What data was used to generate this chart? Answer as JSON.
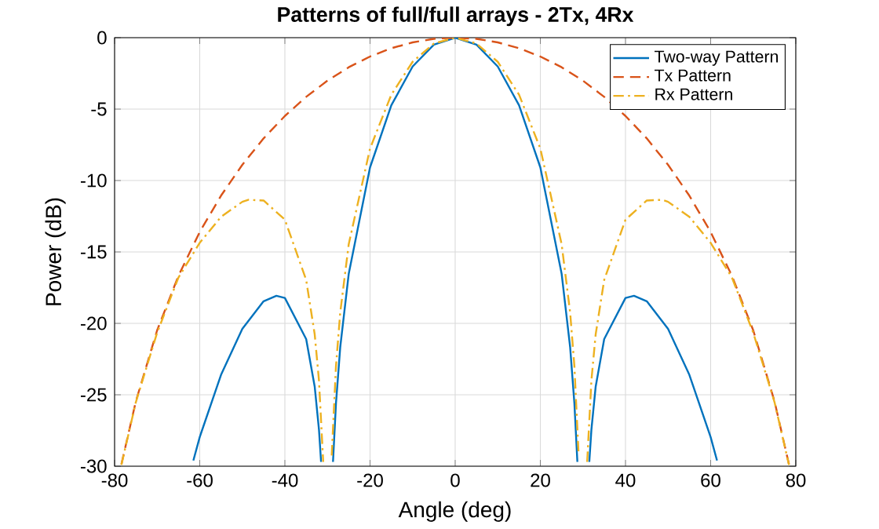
{
  "chart_data": {
    "type": "line",
    "title": "Patterns of full/full arrays - 2Tx, 4Rx",
    "xlabel": "Angle (deg)",
    "ylabel": "Power (dB)",
    "xlim": [
      -80,
      80
    ],
    "ylim": [
      -30,
      0
    ],
    "xticks": [
      -80,
      -60,
      -40,
      -20,
      0,
      20,
      40,
      60,
      80
    ],
    "yticks": [
      -30,
      -25,
      -20,
      -15,
      -10,
      -5,
      0
    ],
    "grid": true,
    "legend": "top right",
    "series": [
      {
        "name": "Two-way Pattern",
        "color": "#0072bd",
        "line_style": "solid",
        "x": [
          -61.5,
          -60,
          -55,
          -50,
          -45,
          -42,
          -40,
          -35,
          -33,
          -32,
          -31.5,
          -30,
          -28.7,
          -28,
          -27,
          -25,
          -20,
          -15,
          -10,
          -5,
          0,
          5,
          10,
          15,
          20,
          25,
          27,
          28,
          28.7,
          30,
          31.5,
          32,
          33,
          35,
          40,
          42,
          45,
          50,
          55,
          60,
          61.5
        ],
        "values": [
          -29.6,
          -27.96,
          -23.6,
          -20.39,
          -18.45,
          -18.07,
          -18.22,
          -21.1,
          -24.42,
          -27.42,
          -29.7,
          null,
          -29.7,
          -25.6,
          -21.67,
          -16.52,
          -9.08,
          -4.73,
          -2.02,
          -0.49,
          0,
          -0.49,
          -2.02,
          -4.73,
          -9.08,
          -16.52,
          -21.67,
          -25.6,
          -29.7,
          null,
          -29.7,
          -27.42,
          -24.42,
          -21.1,
          -18.22,
          -18.07,
          -18.45,
          -20.39,
          -23.6,
          -27.96,
          -29.6
        ]
      },
      {
        "name": "Tx Pattern",
        "color": "#d95319",
        "line_style": "dashed",
        "x": [
          -78.4,
          -75,
          -70,
          -65,
          -60,
          -55,
          -50,
          -45,
          -40,
          -35,
          -30,
          -25,
          -20,
          -15,
          -10,
          -5,
          0,
          5,
          10,
          15,
          20,
          25,
          30,
          35,
          40,
          45,
          50,
          55,
          60,
          65,
          70,
          75,
          78.4
        ],
        "values": [
          -29.87,
          -25.45,
          -20.48,
          -16.67,
          -13.6,
          -11.06,
          -8.9,
          -7.05,
          -5.48,
          -4.14,
          -3.01,
          -2.07,
          -1.32,
          -0.74,
          -0.33,
          -0.08,
          0,
          -0.08,
          -0.33,
          -0.74,
          -1.32,
          -2.07,
          -3.01,
          -4.14,
          -5.48,
          -7.05,
          -8.9,
          -11.06,
          -13.6,
          -16.67,
          -20.48,
          -25.45,
          -29.87
        ]
      },
      {
        "name": "Rx Pattern",
        "color": "#edb120",
        "line_style": "dashdot",
        "x": [
          -78.4,
          -75,
          -70,
          -65,
          -60,
          -55,
          -50,
          -48.6,
          -45,
          -40,
          -35,
          -33,
          -32,
          -31,
          -30,
          -29,
          -28,
          -27,
          -25,
          -20,
          -15,
          -10,
          -5,
          0,
          5,
          10,
          15,
          20,
          25,
          27,
          28,
          29,
          30,
          31,
          32,
          33,
          35,
          40,
          45,
          48.6,
          50,
          55,
          60,
          65,
          70,
          75,
          78.4
        ],
        "values": [
          -29.9,
          -25.51,
          -20.65,
          -16.79,
          -14.36,
          -12.54,
          -11.49,
          -11.35,
          -11.4,
          -12.74,
          -16.96,
          -20.76,
          -23.98,
          -29.7,
          null,
          -29.25,
          -23.0,
          -19.24,
          -14.45,
          -7.76,
          -3.99,
          -1.69,
          -0.41,
          0,
          -0.41,
          -1.69,
          -3.99,
          -7.76,
          -14.45,
          -19.24,
          -23.0,
          -29.25,
          null,
          -29.7,
          -23.98,
          -20.76,
          -16.96,
          -12.74,
          -11.4,
          -11.35,
          -11.49,
          -12.54,
          -14.36,
          -16.79,
          -20.65,
          -25.51,
          -29.9
        ]
      }
    ]
  }
}
